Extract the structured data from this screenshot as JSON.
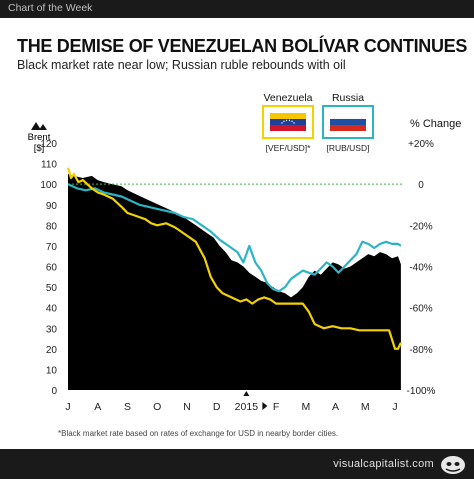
{
  "header": {
    "label": "Chart of the Week"
  },
  "footer": {
    "brand": "visualcapitalist.com"
  },
  "legend": {
    "venezuela": {
      "name": "Venezuela",
      "code": "[VEF/USD]*"
    },
    "russia": {
      "name": "Russia",
      "code": "[RUB/USD]"
    }
  },
  "footnote": "*Black market rate based on rates of exchange for USD in nearby border cities.",
  "colors": {
    "brent": "#000000",
    "venezuela": "#f2d200",
    "russia": "#2bb5c4",
    "zero_line": "#3db54a"
  },
  "chart_data": {
    "type": "area",
    "title": "THE DEMISE OF VENEZUELAN BOLÍVAR CONTINUES",
    "subtitle": "Black market rate near low; Russian ruble rebounds with oil",
    "ylabel_left": "Brent [$]",
    "ylabel_right": "% Change",
    "y_left_ticks": [
      "0",
      "10",
      "20",
      "30",
      "40",
      "50",
      "60",
      "70",
      "80",
      "90",
      "100",
      "110",
      "120"
    ],
    "y_left_range": [
      0,
      120
    ],
    "y_right_ticks": [
      "+20%",
      "0",
      "-20%",
      "-40%",
      "-60%",
      "-80%",
      "-100%"
    ],
    "y_right_range": [
      -100,
      20
    ],
    "x_ticks": [
      "J",
      "A",
      "S",
      "O",
      "N",
      "D",
      "2015",
      "F",
      "M",
      "A",
      "M",
      "J"
    ],
    "zero_line": true,
    "series": [
      {
        "name": "Brent",
        "axis": "left",
        "x": [
          0,
          0.2,
          0.5,
          0.8,
          1.0,
          1.2,
          1.5,
          1.8,
          2.0,
          2.3,
          2.6,
          2.9,
          3.2,
          3.5,
          3.8,
          4.0,
          4.3,
          4.6,
          4.9,
          5.1,
          5.3,
          5.5,
          5.7,
          5.9,
          6.1,
          6.3,
          6.5,
          6.7,
          6.9,
          7.1,
          7.3,
          7.5,
          7.7,
          7.9,
          8.1,
          8.3,
          8.5,
          8.7,
          8.9,
          9.1,
          9.3,
          9.5,
          9.7,
          9.9,
          10.1,
          10.3,
          10.5,
          10.7,
          10.9,
          11.1,
          11.2
        ],
        "values": [
          105,
          104,
          103,
          104,
          102,
          101,
          100,
          99,
          97,
          95,
          93,
          91,
          89,
          87,
          85,
          83,
          80,
          77,
          74,
          70,
          67,
          63,
          62,
          60,
          57,
          55,
          53,
          52,
          50,
          48,
          47,
          45,
          47,
          50,
          55,
          58,
          56,
          59,
          62,
          61,
          59,
          60,
          62,
          64,
          66,
          65,
          67,
          66,
          64,
          65,
          61
        ]
      },
      {
        "name": "Venezuela",
        "axis": "right",
        "x": [
          0,
          0.1,
          0.2,
          0.35,
          0.5,
          0.65,
          0.8,
          1.0,
          1.2,
          1.5,
          1.8,
          2.0,
          2.2,
          2.4,
          2.6,
          2.8,
          3.0,
          3.3,
          3.6,
          3.8,
          4.0,
          4.3,
          4.6,
          4.8,
          5.0,
          5.2,
          5.5,
          5.8,
          6.0,
          6.2,
          6.4,
          6.6,
          6.8,
          7.0,
          7.3,
          7.6,
          7.9,
          8.1,
          8.3,
          8.6,
          8.9,
          9.2,
          9.5,
          9.8,
          10.2,
          10.5,
          10.8,
          11.0,
          11.1,
          11.2
        ],
        "values": [
          8,
          3,
          5,
          1,
          2,
          0,
          -2,
          -4,
          -5,
          -7,
          -11,
          -14,
          -15,
          -16,
          -17,
          -19,
          -20,
          -19,
          -21,
          -23,
          -25,
          -28,
          -36,
          -45,
          -50,
          -53,
          -55,
          -57,
          -56,
          -58,
          -56,
          -55,
          -56,
          -58,
          -58,
          -58,
          -58,
          -62,
          -68,
          -70,
          -69,
          -70,
          -70,
          -71,
          -71,
          -71,
          -71,
          -80,
          -80,
          -77
        ]
      },
      {
        "name": "Russia",
        "axis": "right",
        "x": [
          0,
          0.3,
          0.6,
          0.9,
          1.2,
          1.5,
          1.8,
          2.1,
          2.4,
          2.7,
          3.0,
          3.3,
          3.6,
          3.9,
          4.2,
          4.5,
          4.8,
          5.1,
          5.4,
          5.7,
          5.9,
          6.1,
          6.3,
          6.5,
          6.7,
          6.9,
          7.1,
          7.3,
          7.5,
          7.7,
          7.9,
          8.1,
          8.3,
          8.5,
          8.7,
          8.9,
          9.1,
          9.3,
          9.5,
          9.7,
          9.9,
          10.1,
          10.3,
          10.5,
          10.7,
          10.9,
          11.1,
          11.2
        ],
        "values": [
          0,
          -2,
          -3,
          -2,
          -4,
          -5,
          -6,
          -8,
          -10,
          -11,
          -12,
          -13,
          -14,
          -16,
          -17,
          -20,
          -23,
          -27,
          -30,
          -33,
          -38,
          -30,
          -38,
          -42,
          -48,
          -51,
          -52,
          -50,
          -46,
          -44,
          -42,
          -43,
          -44,
          -41,
          -38,
          -40,
          -43,
          -40,
          -37,
          -34,
          -28,
          -29,
          -31,
          -29,
          -28,
          -29,
          -29,
          -30
        ]
      }
    ]
  }
}
